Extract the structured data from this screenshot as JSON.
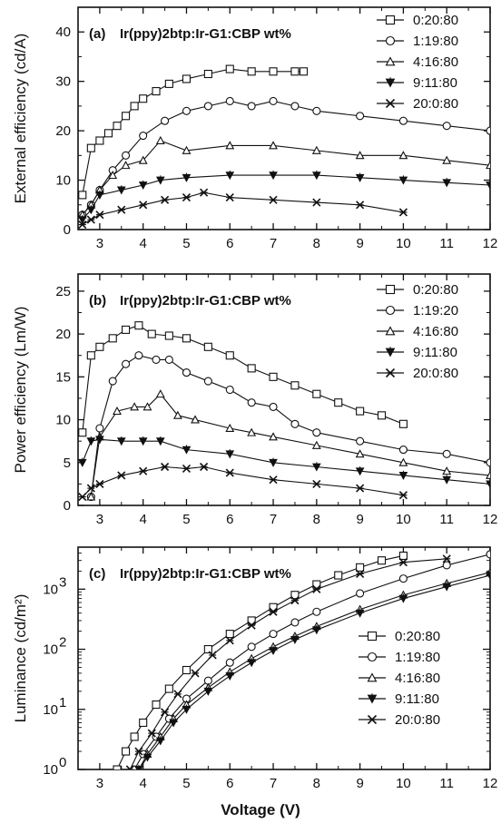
{
  "figure": {
    "xlabel": "Voltage (V)"
  },
  "chart_data": [
    {
      "type": "line",
      "panel": "(a)",
      "title": "Ir(ppy)2btp:Ir-G1:CBP wt%",
      "ylabel": "External efficiency (cd/A)",
      "xlim": [
        2.5,
        12
      ],
      "ylim": [
        0,
        45
      ],
      "yscale": "linear",
      "xticks": [
        3,
        4,
        5,
        6,
        7,
        8,
        9,
        10,
        11,
        12
      ],
      "yticks": [
        0,
        10,
        20,
        30,
        40
      ],
      "legend_position": "top-right",
      "series": [
        {
          "name": "0:20:80",
          "marker": "square",
          "x": [
            2.6,
            2.8,
            3,
            3.2,
            3.4,
            3.6,
            3.8,
            4,
            4.3,
            4.6,
            5,
            5.5,
            6,
            6.5,
            7,
            7.5,
            7.7
          ],
          "y": [
            7,
            16.5,
            18,
            19.5,
            21,
            23,
            25,
            26.5,
            28,
            29.5,
            30.5,
            31.5,
            32.5,
            32,
            32,
            32,
            32
          ]
        },
        {
          "name": "1:19:80",
          "marker": "circle",
          "x": [
            2.6,
            2.8,
            3,
            3.3,
            3.6,
            4,
            4.5,
            5,
            5.5,
            6,
            6.5,
            7,
            7.5,
            8,
            9,
            10,
            11,
            12
          ],
          "y": [
            3,
            5,
            8,
            12,
            15,
            19,
            22,
            24,
            25,
            26,
            25,
            26,
            25,
            24,
            23,
            22,
            21,
            20
          ]
        },
        {
          "name": "4:16:80",
          "marker": "triangle",
          "x": [
            2.6,
            2.8,
            3,
            3.3,
            3.6,
            4,
            4.4,
            5,
            6,
            7,
            8,
            9,
            10,
            11,
            12
          ],
          "y": [
            3,
            5,
            8,
            11,
            13,
            14,
            18,
            16,
            17,
            17,
            16,
            15,
            15,
            14,
            13
          ]
        },
        {
          "name": "9:11:80",
          "marker": "down-triangle",
          "x": [
            2.6,
            2.8,
            3,
            3.5,
            4,
            4.4,
            5,
            6,
            7,
            8,
            9,
            10,
            11,
            12
          ],
          "y": [
            2,
            4,
            7,
            8,
            9,
            10,
            10.5,
            11,
            11,
            11,
            10.5,
            10,
            9.5,
            9
          ]
        },
        {
          "name": "20:0:80",
          "marker": "star",
          "x": [
            2.6,
            2.8,
            3,
            3.5,
            4,
            4.5,
            5,
            5.4,
            6,
            7,
            8,
            9,
            10
          ],
          "y": [
            1,
            2,
            3,
            4,
            5,
            6,
            6.5,
            7.5,
            6.5,
            6,
            5.5,
            5,
            3.5
          ]
        }
      ]
    },
    {
      "type": "line",
      "panel": "(b)",
      "title": "Ir(ppy)2btp:Ir-G1:CBP wt%",
      "ylabel": "Power efficiency (Lm/W)",
      "xlim": [
        2.5,
        12
      ],
      "ylim": [
        0,
        27
      ],
      "yscale": "linear",
      "xticks": [
        3,
        4,
        5,
        6,
        7,
        8,
        9,
        10,
        11,
        12
      ],
      "yticks": [
        0,
        5,
        10,
        15,
        20,
        25
      ],
      "legend_position": "top-right",
      "series": [
        {
          "name": "0:20:80",
          "marker": "square",
          "x": [
            2.6,
            2.8,
            3,
            3.3,
            3.6,
            3.9,
            4.2,
            4.6,
            5,
            5.5,
            6,
            6.5,
            7,
            7.5,
            8,
            8.5,
            9,
            9.5,
            10
          ],
          "y": [
            8.5,
            17.5,
            18.5,
            19.5,
            20.5,
            21,
            20,
            19.8,
            19.5,
            18.5,
            17.5,
            16,
            15,
            14,
            13,
            12,
            11,
            10.5,
            9.5
          ]
        },
        {
          "name": "1:19:20",
          "marker": "circle",
          "x": [
            2.8,
            3,
            3.3,
            3.6,
            3.9,
            4.3,
            4.6,
            5,
            5.5,
            6,
            6.5,
            7,
            7.5,
            8,
            9,
            10,
            11,
            12
          ],
          "y": [
            1,
            9,
            14.5,
            16.5,
            17.5,
            17,
            17,
            15.5,
            14.5,
            13.5,
            12,
            11.5,
            9.5,
            8.5,
            7.5,
            6.5,
            6,
            5
          ]
        },
        {
          "name": "4:16:80",
          "marker": "triangle",
          "x": [
            2.8,
            3,
            3.4,
            3.8,
            4.1,
            4.4,
            4.8,
            5.2,
            6,
            6.5,
            7,
            8,
            9,
            10,
            11,
            12
          ],
          "y": [
            1,
            8,
            11,
            11.5,
            11.5,
            13,
            10.5,
            10,
            9,
            8.5,
            8,
            7,
            6,
            5,
            4,
            3.5
          ]
        },
        {
          "name": "9:11:80",
          "marker": "down-triangle",
          "x": [
            2.6,
            2.8,
            3,
            3.5,
            4,
            4.4,
            5,
            6,
            7,
            8,
            9,
            10,
            11,
            12
          ],
          "y": [
            5,
            7.5,
            7.7,
            7.5,
            7.5,
            7.5,
            6.5,
            6,
            5,
            4.5,
            4,
            3.5,
            3,
            2.5
          ]
        },
        {
          "name": "20:0:80",
          "marker": "star",
          "x": [
            2.6,
            2.8,
            3,
            3.5,
            4,
            4.5,
            5,
            5.4,
            6,
            7,
            8,
            9,
            10
          ],
          "y": [
            1,
            2,
            2.5,
            3.5,
            4,
            4.5,
            4.3,
            4.5,
            3.8,
            3,
            2.5,
            2,
            1.2
          ]
        }
      ]
    },
    {
      "type": "line",
      "panel": "(c)",
      "title": "Ir(ppy)2btp:Ir-G1:CBP wt%",
      "ylabel": "Luminance (cd/m²)",
      "xlim": [
        2.5,
        12
      ],
      "ylim": [
        1,
        5000
      ],
      "yscale": "log",
      "xticks": [
        3,
        4,
        5,
        6,
        7,
        8,
        9,
        10,
        11,
        12
      ],
      "yticks_exp": [
        0,
        1,
        2,
        3
      ],
      "legend_position": "bottom-right",
      "series": [
        {
          "name": "0:20:80",
          "marker": "square",
          "x": [
            3.4,
            3.6,
            3.8,
            4,
            4.3,
            4.6,
            5,
            5.5,
            6,
            6.5,
            7,
            7.5,
            8,
            8.5,
            9,
            9.5,
            10
          ],
          "y": [
            1,
            2,
            3.5,
            6,
            12,
            22,
            45,
            100,
            180,
            300,
            500,
            800,
            1200,
            1700,
            2300,
            3000,
            3600
          ]
        },
        {
          "name": "1:19:80",
          "marker": "circle",
          "x": [
            3.8,
            4,
            4.3,
            4.6,
            5,
            5.5,
            6,
            6.5,
            7,
            7.5,
            8,
            9,
            10,
            11,
            12
          ],
          "y": [
            1,
            1.8,
            3.5,
            7,
            15,
            30,
            60,
            110,
            180,
            280,
            420,
            850,
            1500,
            2500,
            3800
          ]
        },
        {
          "name": "4:16:80",
          "marker": "triangle",
          "x": [
            3.9,
            4.1,
            4.4,
            4.7,
            5,
            5.5,
            6,
            6.5,
            7,
            7.5,
            8,
            9,
            10,
            11,
            12
          ],
          "y": [
            1,
            1.8,
            3.5,
            7,
            12,
            23,
            42,
            70,
            110,
            165,
            240,
            460,
            800,
            1250,
            1900
          ]
        },
        {
          "name": "9:11:80",
          "marker": "down-triangle",
          "x": [
            3.9,
            4.1,
            4.4,
            4.7,
            5,
            5.5,
            6,
            6.5,
            7,
            7.5,
            8,
            9,
            10,
            11,
            12
          ],
          "y": [
            1,
            1.6,
            3,
            6,
            10,
            20,
            36,
            60,
            95,
            145,
            210,
            400,
            700,
            1100,
            1700
          ]
        },
        {
          "name": "20:0:80",
          "marker": "star",
          "x": [
            3.7,
            3.9,
            4.2,
            4.5,
            4.8,
            5.2,
            5.6,
            6,
            6.5,
            7,
            7.5,
            8,
            9,
            10,
            11
          ],
          "y": [
            1,
            2,
            4,
            9,
            18,
            40,
            80,
            140,
            250,
            420,
            650,
            1000,
            1800,
            2800,
            3200
          ]
        }
      ]
    }
  ]
}
